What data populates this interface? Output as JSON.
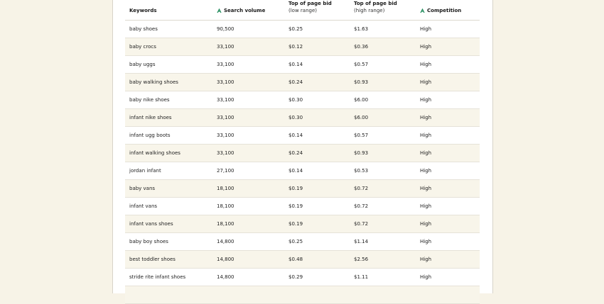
{
  "table": {
    "headers": [
      {
        "label": "Keywords"
      },
      {
        "label": "Search volume"
      },
      {
        "label": "Top of page bid",
        "sublabel": "(low range)"
      },
      {
        "label": "Top of page bid",
        "sublabel": "(high range)"
      },
      {
        "label": "Competition"
      }
    ],
    "rows": [
      [
        "baby shoes",
        "90,500",
        "$0.25",
        "$1.63",
        "High"
      ],
      [
        "baby crocs",
        "33,100",
        "$0.12",
        "$0.36",
        "High"
      ],
      [
        "baby uggs",
        "33,100",
        "$0.14",
        "$0.57",
        "High"
      ],
      [
        "baby walking shoes",
        "33,100",
        "$0.24",
        "$0.93",
        "High"
      ],
      [
        "baby nike shoes",
        "33,100",
        "$0.30",
        "$6.00",
        "High"
      ],
      [
        "infant nike shoes",
        "33,100",
        "$0.30",
        "$6.00",
        "High"
      ],
      [
        "infant ugg boots",
        "33,100",
        "$0.14",
        "$0.57",
        "High"
      ],
      [
        "infant walking shoes",
        "33,100",
        "$0.24",
        "$0.93",
        "High"
      ],
      [
        "jordan infant",
        "27,100",
        "$0.14",
        "$0.53",
        "High"
      ],
      [
        "baby vans",
        "18,100",
        "$0.19",
        "$0.72",
        "High"
      ],
      [
        "infant vans",
        "18,100",
        "$0.19",
        "$0.72",
        "High"
      ],
      [
        "infant vans shoes",
        "18,100",
        "$0.19",
        "$0.72",
        "High"
      ],
      [
        "baby boy shoes",
        "14,800",
        "$0.25",
        "$1.14",
        "High"
      ],
      [
        "best toddler shoes",
        "14,800",
        "$0.48",
        "$2.56",
        "High"
      ],
      [
        "stride rite infant shoes",
        "14,800",
        "$0.29",
        "$1.11",
        "High"
      ]
    ]
  }
}
